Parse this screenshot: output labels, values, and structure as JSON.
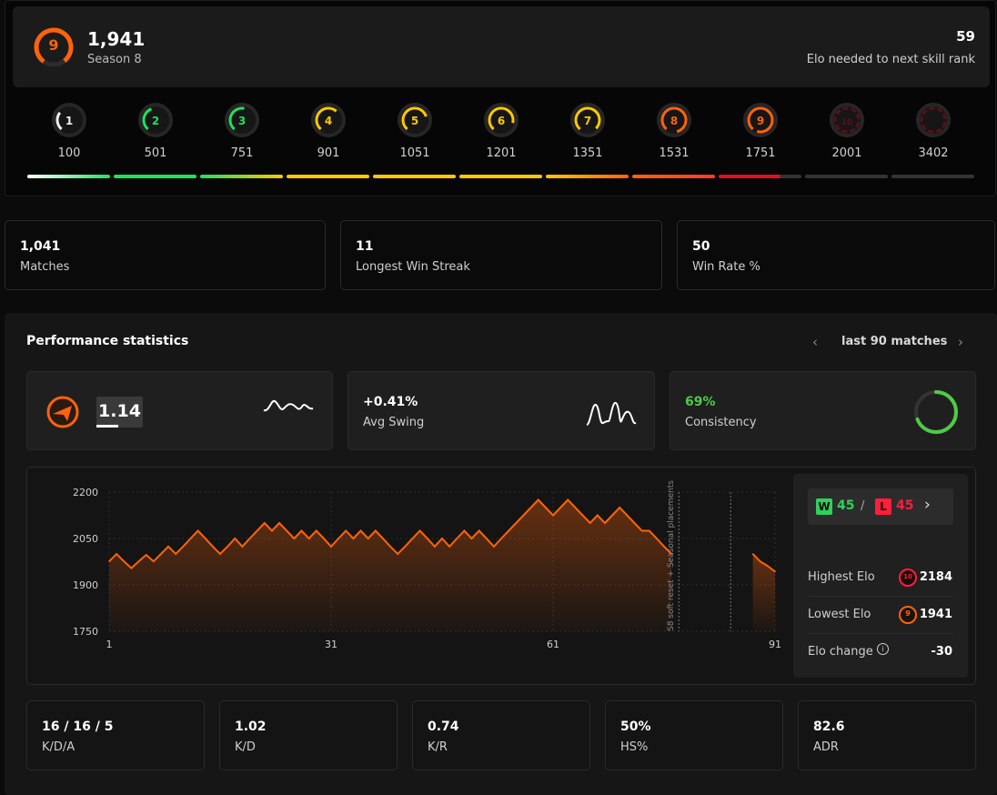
{
  "header": {
    "level": "9",
    "elo": "1,941",
    "season": "Season 8",
    "elo_needed": "59",
    "elo_needed_label": "Elo needed to next skill rank"
  },
  "levels": [
    {
      "level": "1",
      "elo": "100",
      "color": "#eeeeee"
    },
    {
      "level": "2",
      "elo": "501",
      "color": "#1ce35a"
    },
    {
      "level": "3",
      "elo": "751",
      "color": "#1ce35a"
    },
    {
      "level": "4",
      "elo": "901",
      "color": "#ffc800"
    },
    {
      "level": "5",
      "elo": "1051",
      "color": "#ffc800"
    },
    {
      "level": "6",
      "elo": "1201",
      "color": "#ffc800"
    },
    {
      "level": "7",
      "elo": "1351",
      "color": "#ffc800"
    },
    {
      "level": "8",
      "elo": "1531",
      "color": "#ff6309"
    },
    {
      "level": "9",
      "elo": "1751",
      "color": "#ff6309"
    },
    {
      "level": "10",
      "elo": "2001",
      "color": "#5a0f18"
    },
    {
      "level": "",
      "elo": "3402",
      "color": "#5a0f18"
    }
  ],
  "progress_fraction_in_level_9": 0.74,
  "stats": [
    {
      "value": "1,041",
      "label": "Matches"
    },
    {
      "value": "11",
      "label": "Longest Win Streak"
    },
    {
      "value": "50",
      "label": "Win Rate %"
    }
  ],
  "performance": {
    "title": "Performance statistics",
    "range_label": "last 90 matches",
    "prev_icon": "chevron-left-icon",
    "next_icon": "chevron-right-icon",
    "rating": "1.14",
    "avg_swing_value": "+0.41%",
    "avg_swing_label": "Avg Swing",
    "consistency_value": "69%",
    "consistency_label": "Consistency",
    "consistency_fraction": 0.69
  },
  "summary": {
    "wins_badge": "W",
    "wins": "45",
    "divider": "/",
    "losses_badge": "L",
    "losses": "45",
    "highest_label": "Highest Elo",
    "highest_level": "10",
    "highest_value": "2184",
    "lowest_label": "Lowest Elo",
    "lowest_level": "9",
    "lowest_value": "1941",
    "change_label": "Elo change",
    "change_value": "-30"
  },
  "chart_data": {
    "type": "area",
    "x_ticks": [
      "1",
      "31",
      "61",
      "91"
    ],
    "y_ticks": [
      "2200",
      "2050",
      "1900",
      "1750"
    ],
    "ylim": [
      1750,
      2200
    ],
    "xlim": [
      1,
      91
    ],
    "annotation": "S8 soft reset + Seasonal placements",
    "x": [
      1,
      2,
      3,
      4,
      5,
      6,
      7,
      8,
      9,
      10,
      11,
      12,
      13,
      14,
      15,
      16,
      17,
      18,
      19,
      20,
      21,
      22,
      23,
      24,
      25,
      26,
      27,
      28,
      29,
      30,
      31,
      32,
      33,
      34,
      35,
      36,
      37,
      38,
      39,
      40,
      41,
      42,
      43,
      44,
      45,
      46,
      47,
      48,
      49,
      50,
      51,
      52,
      53,
      54,
      55,
      56,
      57,
      58,
      59,
      60,
      61,
      62,
      63,
      64,
      65,
      66,
      67,
      68,
      69,
      70,
      71,
      72,
      73,
      74,
      75,
      76,
      77,
      88,
      89,
      90,
      91
    ],
    "y": [
      1976,
      2000,
      1976,
      1954,
      1976,
      1997,
      1976,
      2000,
      2024,
      2000,
      2024,
      2050,
      2075,
      2050,
      2024,
      2000,
      2024,
      2050,
      2024,
      2050,
      2075,
      2100,
      2075,
      2100,
      2075,
      2050,
      2075,
      2050,
      2075,
      2050,
      2024,
      2050,
      2075,
      2050,
      2075,
      2050,
      2075,
      2050,
      2024,
      2000,
      2024,
      2050,
      2075,
      2050,
      2024,
      2050,
      2024,
      2050,
      2075,
      2050,
      2075,
      2050,
      2024,
      2050,
      2075,
      2100,
      2125,
      2150,
      2175,
      2150,
      2125,
      2150,
      2175,
      2150,
      2125,
      2100,
      2125,
      2100,
      2125,
      2150,
      2125,
      2100,
      2075,
      2075,
      2050,
      2024,
      2000,
      2000,
      1976,
      1961,
      1943
    ]
  },
  "bottom_stats": [
    {
      "value": "16 / 16 / 5",
      "label": "K/D/A"
    },
    {
      "value": "1.02",
      "label": "K/D"
    },
    {
      "value": "0.74",
      "label": "K/R"
    },
    {
      "value": "50%",
      "label": "HS%"
    },
    {
      "value": "82.6",
      "label": "ADR"
    }
  ]
}
